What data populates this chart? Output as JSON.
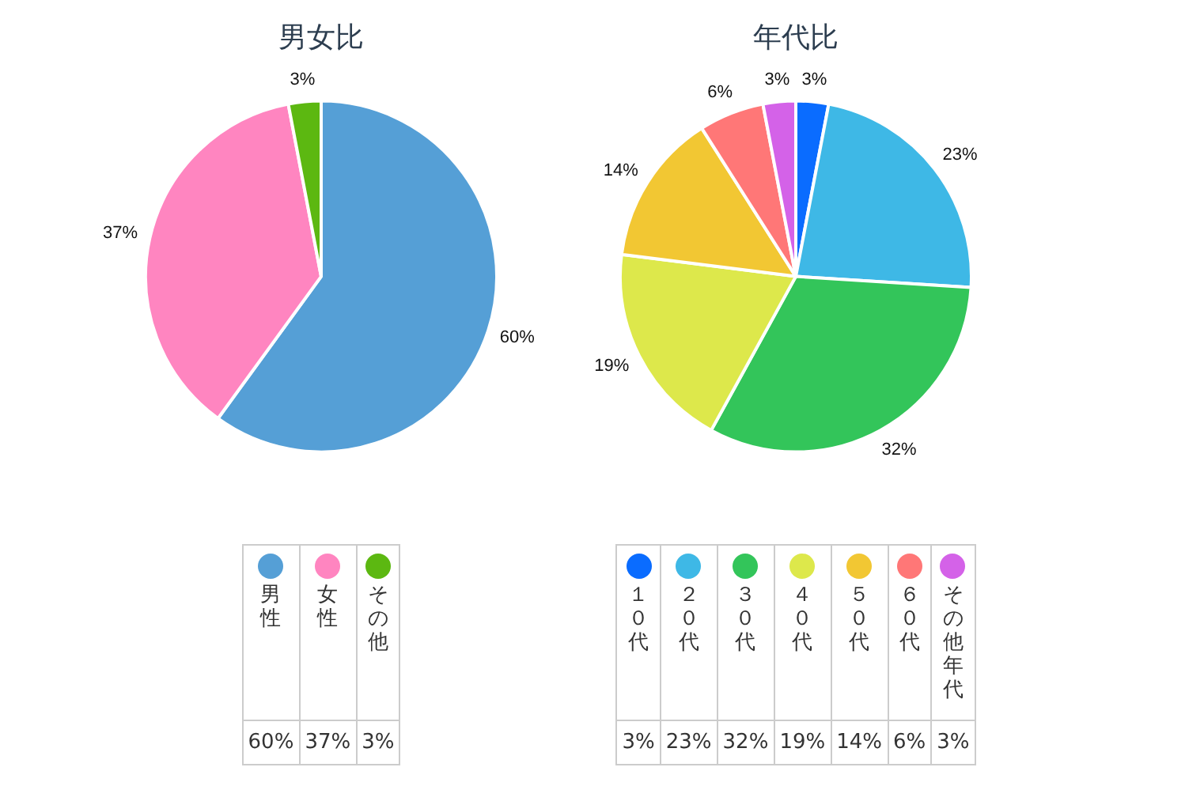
{
  "chart_data": [
    {
      "type": "pie",
      "title": "男女比",
      "categories": [
        "男性",
        "女性",
        "その他"
      ],
      "values": [
        60,
        37,
        3
      ],
      "colors": [
        "#559fd6",
        "#ff85c0",
        "#5cb811"
      ],
      "value_labels": [
        "60%",
        "37%",
        "3%"
      ],
      "legend": "bottom"
    },
    {
      "type": "pie",
      "title": "年代比",
      "categories": [
        "１０代",
        "２０代",
        "３０代",
        "４０代",
        "５０代",
        "６０代",
        "その他年代"
      ],
      "values": [
        3,
        23,
        32,
        19,
        14,
        6,
        3
      ],
      "colors": [
        "#0a6cff",
        "#3eb8e6",
        "#33c55a",
        "#dde84b",
        "#f2c733",
        "#ff7777",
        "#d462e8"
      ],
      "value_labels": [
        "3%",
        "23%",
        "32%",
        "19%",
        "14%",
        "6%",
        "3%"
      ],
      "legend": "bottom"
    }
  ]
}
